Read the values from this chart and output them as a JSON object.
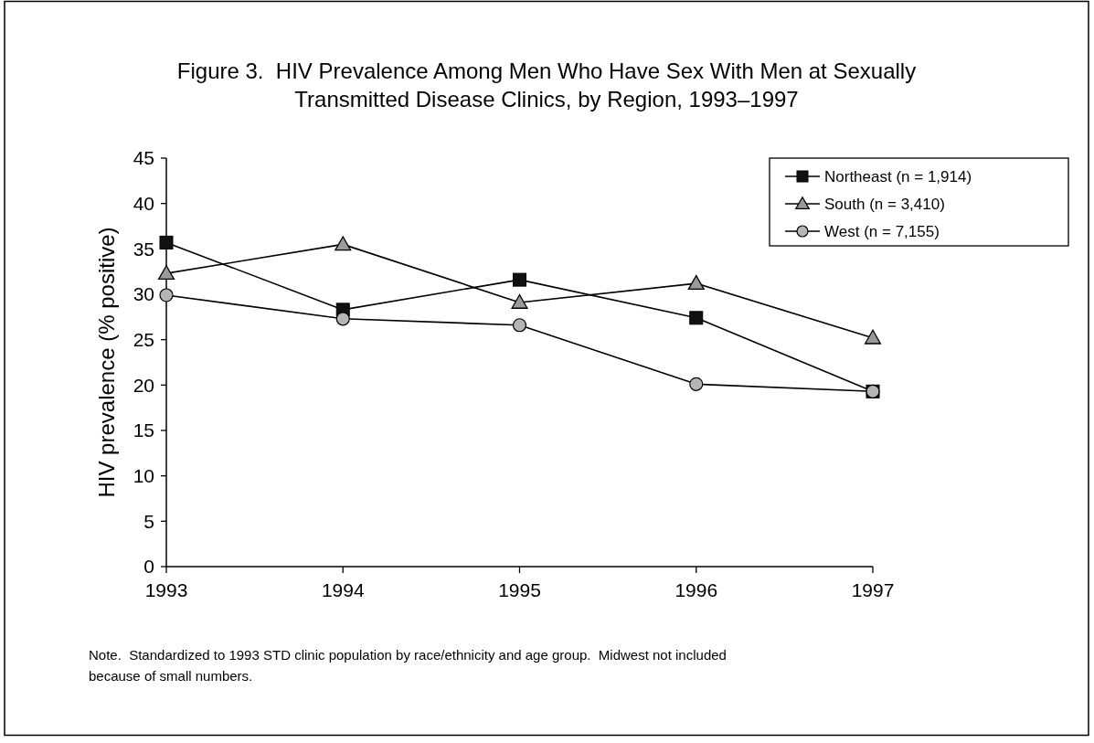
{
  "chart_data": {
    "type": "line",
    "title": "Figure 3.  HIV Prevalence Among Men Who Have Sex With Men at Sexually Transmitted Disease Clinics, by Region, 1993–1997",
    "ylabel": "HIV prevalence (% positive)",
    "categories": [
      "1993",
      "1994",
      "1995",
      "1996",
      "1997"
    ],
    "series": [
      {
        "name": "Northeast (n = 1,914)",
        "color": "#111111",
        "marker": "square",
        "values": [
          35.7,
          28.3,
          31.6,
          27.4,
          19.3
        ]
      },
      {
        "name": "South (n = 3,410)",
        "color": "#9a9a9a",
        "marker": "triangle",
        "values": [
          32.3,
          35.5,
          29.1,
          31.2,
          25.2
        ]
      },
      {
        "name": "West (n = 7,155)",
        "color": "#b5b5b5",
        "marker": "circle",
        "values": [
          29.9,
          27.3,
          26.6,
          20.1,
          19.3
        ]
      }
    ],
    "ylim": [
      0,
      45
    ],
    "yticks": [
      0,
      5,
      10,
      15,
      20,
      25,
      30,
      35,
      40,
      45
    ],
    "legend": "top right",
    "grid": false,
    "line_style": "solid",
    "annotations": [
      "Note.  Standardized to 1993 STD clinic population by race/ethnicity and age group.  Midwest not included because of small numbers."
    ]
  }
}
